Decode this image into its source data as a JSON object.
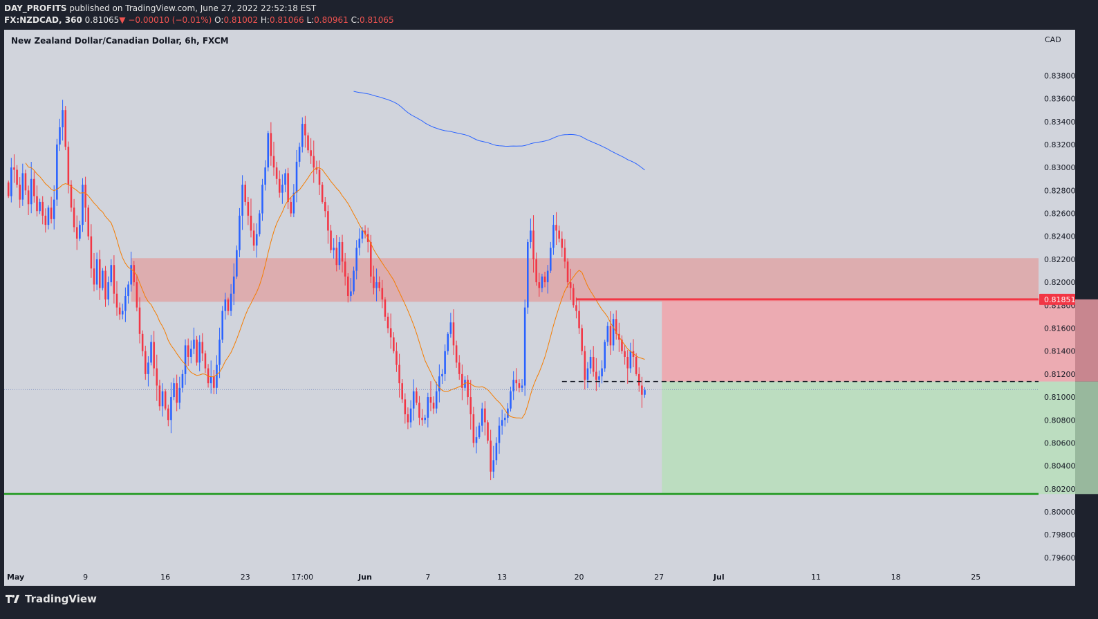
{
  "header": {
    "publisher": "DAY_PROFITS",
    "published_text": "published on TradingView.com, June 27, 2022 22:52:18 EST",
    "symbol": "FX:NZDCAD, 360",
    "last": "0.81065",
    "change_arrow": "▼",
    "change": "−0.00010 (−0.01%)",
    "o_label": "O:",
    "o_value": "0.81002",
    "h_label": "H:",
    "h_value": "0.81066",
    "l_label": "L:",
    "l_value": "0.80961",
    "c_label": "C:",
    "c_value": "0.81065"
  },
  "footer": {
    "brand": "TradingView"
  },
  "colors": {
    "background": "#d1d4dc",
    "frame": "#1e222d",
    "bull": "#2962ff",
    "bear": "#f23645",
    "zone": "#e0a0a0",
    "stop_zone": "#f2a0a8",
    "target_zone": "#b7dfb9",
    "ema_fast": "#f57c00",
    "ema_slow": "#2962ff",
    "support": "#2e9e2e",
    "resistance_line": "#f23645"
  },
  "chart_data": {
    "type": "candlestick",
    "title": "New Zealand Dollar/Canadian Dollar, 6h, FXCM",
    "currency_label": "CAD",
    "ylim": [
      0.795,
      0.842
    ],
    "y_ticks": [
      "0.83800",
      "0.83600",
      "0.83400",
      "0.83200",
      "0.83000",
      "0.82800",
      "0.82600",
      "0.82400",
      "0.82200",
      "0.82000",
      "0.81800",
      "0.81600",
      "0.81400",
      "0.81200",
      "0.81000",
      "0.80800",
      "0.80600",
      "0.80400",
      "0.80200",
      "0.80000",
      "0.79800",
      "0.79600"
    ],
    "x_ticks": [
      {
        "label": "May",
        "bar": 0
      },
      {
        "label": "9",
        "bar": 27
      },
      {
        "label": "16",
        "bar": 55
      },
      {
        "label": "23",
        "bar": 83
      },
      {
        "label": "17:00",
        "bar": 103
      },
      {
        "label": "Jun",
        "bar": 125
      },
      {
        "label": "7",
        "bar": 147
      },
      {
        "label": "13",
        "bar": 173
      },
      {
        "label": "20",
        "bar": 200
      },
      {
        "label": "27",
        "bar": 228
      },
      {
        "label": "Jul",
        "bar": 249
      },
      {
        "label": "11",
        "bar": 283
      },
      {
        "label": "18",
        "bar": 311
      },
      {
        "label": "25",
        "bar": 339
      }
    ],
    "x_bar_range": [
      -1.5,
      361
    ],
    "last_price": 0.81065,
    "price_label": "0.81851",
    "close": [
      0.8275,
      0.83,
      0.8298,
      0.8285,
      0.8272,
      0.8295,
      0.828,
      0.8268,
      0.829,
      0.8275,
      0.8262,
      0.827,
      0.8258,
      0.825,
      0.8265,
      0.8255,
      0.8272,
      0.832,
      0.8335,
      0.835,
      0.8318,
      0.8285,
      0.8265,
      0.8248,
      0.8238,
      0.825,
      0.8285,
      0.8265,
      0.824,
      0.8212,
      0.8198,
      0.822,
      0.8195,
      0.821,
      0.8185,
      0.82,
      0.8215,
      0.819,
      0.8178,
      0.8172,
      0.8175,
      0.8188,
      0.8198,
      0.8215,
      0.82,
      0.8178,
      0.8155,
      0.814,
      0.812,
      0.813,
      0.8148,
      0.8125,
      0.811,
      0.8092,
      0.8105,
      0.809,
      0.808,
      0.81,
      0.8112,
      0.8095,
      0.8108,
      0.812,
      0.8145,
      0.8135,
      0.8142,
      0.815,
      0.813,
      0.8148,
      0.8138,
      0.8125,
      0.8112,
      0.8118,
      0.8108,
      0.8128,
      0.815,
      0.8175,
      0.8185,
      0.8175,
      0.819,
      0.8205,
      0.8228,
      0.8258,
      0.8285,
      0.827,
      0.8258,
      0.8245,
      0.8232,
      0.8242,
      0.826,
      0.8285,
      0.83,
      0.833,
      0.831,
      0.83,
      0.829,
      0.8278,
      0.8285,
      0.8295,
      0.827,
      0.826,
      0.8278,
      0.8305,
      0.8318,
      0.8338,
      0.8328,
      0.8315,
      0.831,
      0.83,
      0.8298,
      0.8285,
      0.827,
      0.8262,
      0.8245,
      0.8228,
      0.823,
      0.8215,
      0.8235,
      0.8218,
      0.8205,
      0.8188,
      0.8192,
      0.821,
      0.823,
      0.8238,
      0.8245,
      0.8242,
      0.8235,
      0.8205,
      0.8195,
      0.82,
      0.8195,
      0.8185,
      0.817,
      0.816,
      0.8152,
      0.814,
      0.8128,
      0.8112,
      0.8098,
      0.8085,
      0.8078,
      0.809,
      0.8105,
      0.8095,
      0.8082,
      0.808,
      0.8082,
      0.81,
      0.8095,
      0.809,
      0.8105,
      0.8118,
      0.812,
      0.814,
      0.8155,
      0.8165,
      0.8145,
      0.813,
      0.812,
      0.8108,
      0.8115,
      0.81,
      0.8085,
      0.806,
      0.8065,
      0.8075,
      0.809,
      0.8078,
      0.8062,
      0.8035,
      0.8045,
      0.806,
      0.8075,
      0.808,
      0.8082,
      0.809,
      0.8105,
      0.8115,
      0.8112,
      0.8108,
      0.811,
      0.8178,
      0.8235,
      0.8245,
      0.822,
      0.82,
      0.8195,
      0.8205,
      0.82,
      0.821,
      0.823,
      0.825,
      0.8245,
      0.8238,
      0.823,
      0.8218,
      0.82,
      0.8195,
      0.818,
      0.8175,
      0.816,
      0.814,
      0.8115,
      0.8125,
      0.8135,
      0.8122,
      0.8115,
      0.8118,
      0.8125,
      0.8148,
      0.8162,
      0.8145,
      0.8168,
      0.8155,
      0.815,
      0.814,
      0.8135,
      0.8125,
      0.814,
      0.8135,
      0.812,
      0.811,
      0.8102,
      0.8106
    ]
  }
}
